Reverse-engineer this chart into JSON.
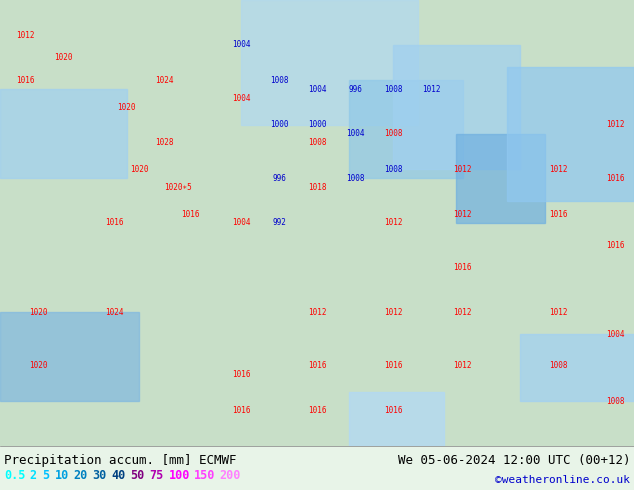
{
  "title_left": "Precipitation accum. [mm] ECMWF",
  "title_right": "We 05-06-2024 12:00 UTC (00+12)",
  "credit": "©weatheronline.co.uk",
  "legend_values": [
    "0.5",
    "2",
    "5",
    "10",
    "20",
    "30",
    "40",
    "50",
    "75",
    "100",
    "150",
    "200"
  ],
  "legend_colors": [
    "#00ffff",
    "#00e0ff",
    "#00c0ff",
    "#00a0e0",
    "#0080c0",
    "#0060a0",
    "#004080",
    "#800080",
    "#b000b0",
    "#ff00ff",
    "#ff40ff",
    "#ff80ff"
  ],
  "bg_color": "#e8f4e8",
  "map_bg": "#d0e8d0",
  "fig_width": 6.34,
  "fig_height": 4.9,
  "dpi": 100,
  "bottom_bar_color": "#f0f0f0",
  "title_fontsize": 9,
  "legend_fontsize": 8.5,
  "credit_fontsize": 8,
  "credit_color": "#0000cc"
}
